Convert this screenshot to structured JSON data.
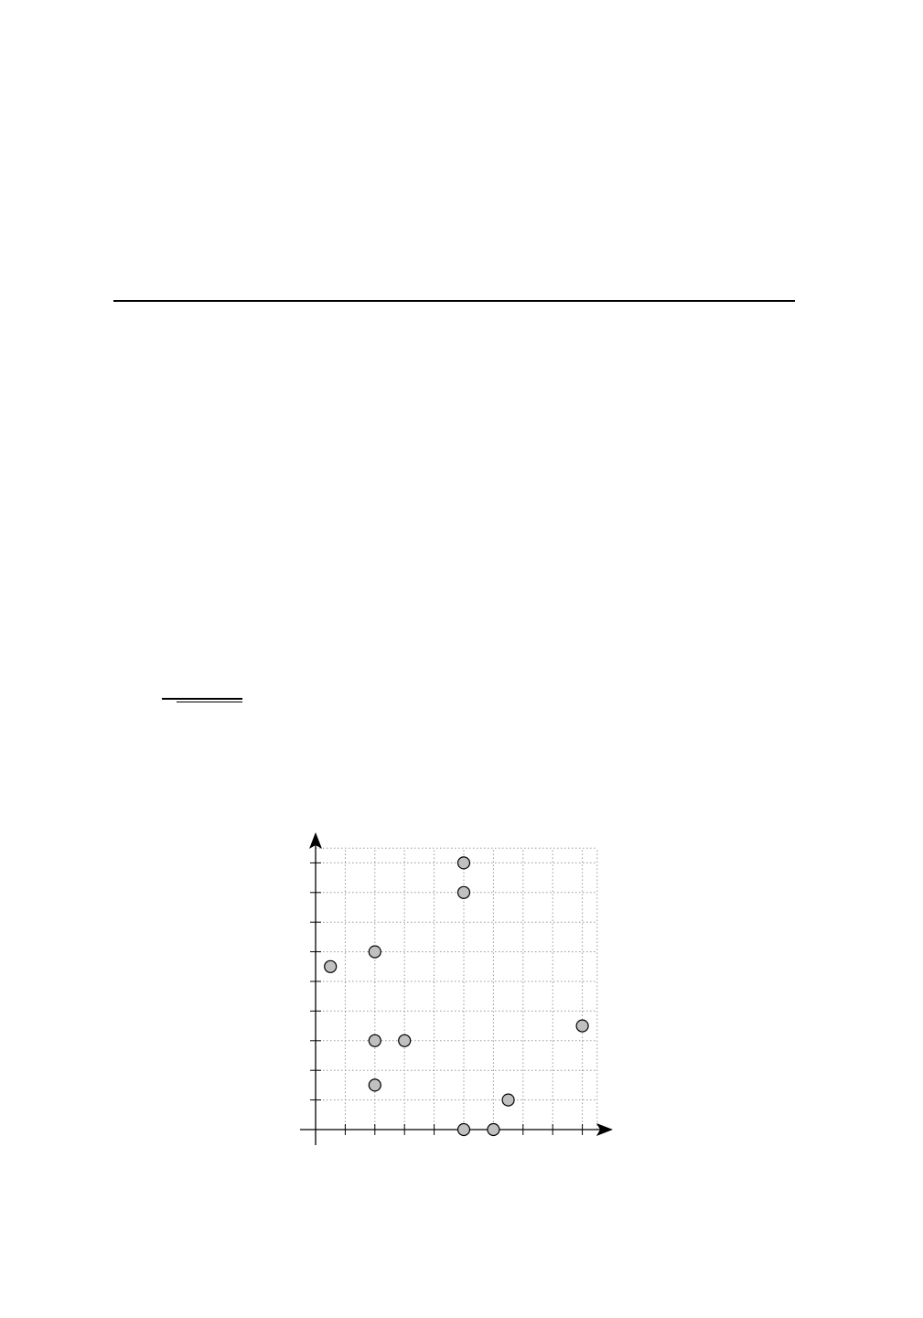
{
  "page": {
    "background_color": "#ffffff"
  },
  "chart_data": {
    "type": "scatter",
    "title": "",
    "xlabel": "",
    "ylabel": "",
    "xlim": [
      -0.5,
      9.5
    ],
    "ylim": [
      -0.5,
      9.5
    ],
    "grid": true,
    "grid_style": "dotted",
    "tick_labels": false,
    "marker_fill": "#c0c0c0",
    "marker_edge": "#000000",
    "points": [
      {
        "x": 0.5,
        "y": 5.5
      },
      {
        "x": 2,
        "y": 6
      },
      {
        "x": 2,
        "y": 3
      },
      {
        "x": 3,
        "y": 3
      },
      {
        "x": 2,
        "y": 1.5
      },
      {
        "x": 5,
        "y": 8
      },
      {
        "x": 5,
        "y": 9
      },
      {
        "x": 5,
        "y": 0
      },
      {
        "x": 6,
        "y": 0
      },
      {
        "x": 6.5,
        "y": 1
      },
      {
        "x": 9,
        "y": 3.5
      }
    ]
  }
}
